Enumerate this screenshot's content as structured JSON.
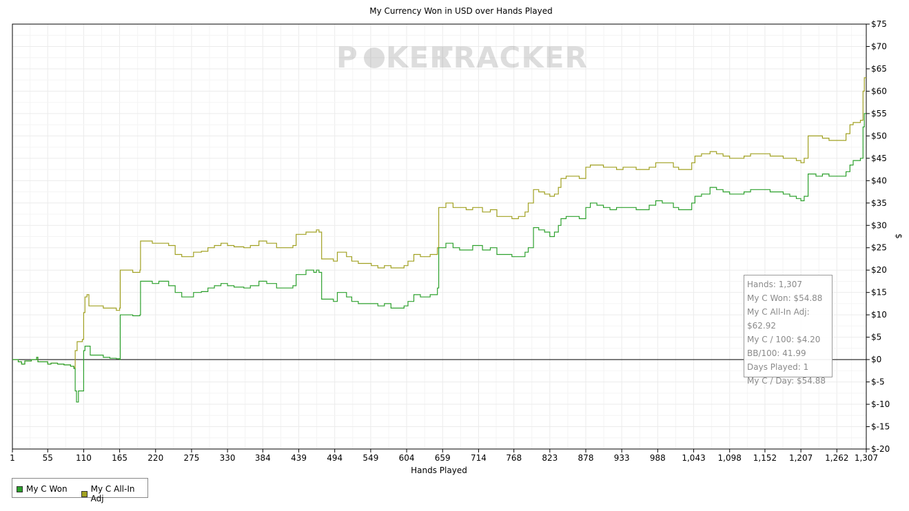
{
  "chart_data": {
    "type": "line",
    "title": "My Currency Won in USD over Hands Played",
    "xlabel": "Hands Played",
    "ylabel": "$",
    "xlim": [
      1,
      1307
    ],
    "ylim": [
      -20,
      75
    ],
    "x_ticks": [
      1,
      55,
      110,
      165,
      220,
      275,
      330,
      384,
      439,
      494,
      549,
      604,
      659,
      714,
      768,
      823,
      878,
      933,
      988,
      1043,
      1098,
      1152,
      1207,
      1262,
      1307
    ],
    "x_tick_labels": [
      "1",
      "55",
      "110",
      "165",
      "220",
      "275",
      "330",
      "384",
      "439",
      "494",
      "549",
      "604",
      "659",
      "714",
      "768",
      "823",
      "878",
      "933",
      "988",
      "1,043",
      "1,098",
      "1,152",
      "1,207",
      "1,262",
      "1,307"
    ],
    "y_ticks": [
      75,
      70,
      65,
      60,
      55,
      50,
      45,
      40,
      35,
      30,
      25,
      20,
      15,
      10,
      5,
      0,
      -5,
      -10,
      -15,
      -20
    ],
    "y_tick_labels": [
      "$75",
      "$70",
      "$65",
      "$60",
      "$55",
      "$50",
      "$45",
      "$40",
      "$35",
      "$30",
      "$25",
      "$20",
      "$15",
      "$10",
      "$5",
      "$0",
      "$-5",
      "$-10",
      "$-15",
      "$-20"
    ],
    "grid": true,
    "legend_position": "bottom-left",
    "series": [
      {
        "name": "My C Won",
        "color": "#2ca02c",
        "points": [
          [
            1,
            0
          ],
          [
            10,
            -0.5
          ],
          [
            15,
            -1
          ],
          [
            20,
            -0.3
          ],
          [
            30,
            0
          ],
          [
            38,
            0.5
          ],
          [
            40,
            -0.5
          ],
          [
            55,
            -1
          ],
          [
            60,
            -0.8
          ],
          [
            70,
            -1
          ],
          [
            80,
            -1.2
          ],
          [
            90,
            -1.5
          ],
          [
            95,
            -2
          ],
          [
            97,
            -7
          ],
          [
            99,
            -9.5
          ],
          [
            102,
            -7
          ],
          [
            108,
            -7
          ],
          [
            110,
            2
          ],
          [
            112,
            3
          ],
          [
            116,
            3
          ],
          [
            120,
            1
          ],
          [
            130,
            1
          ],
          [
            140,
            0.5
          ],
          [
            150,
            0.3
          ],
          [
            160,
            0.2
          ],
          [
            165,
            0
          ],
          [
            166,
            10
          ],
          [
            172,
            10
          ],
          [
            185,
            9.8
          ],
          [
            196,
            10
          ],
          [
            197,
            17.5
          ],
          [
            205,
            17.5
          ],
          [
            215,
            17
          ],
          [
            225,
            17.5
          ],
          [
            240,
            16.5
          ],
          [
            250,
            15
          ],
          [
            260,
            14
          ],
          [
            270,
            14
          ],
          [
            278,
            15
          ],
          [
            290,
            15.2
          ],
          [
            300,
            16
          ],
          [
            310,
            16.5
          ],
          [
            320,
            17
          ],
          [
            330,
            16.5
          ],
          [
            340,
            16.2
          ],
          [
            355,
            16
          ],
          [
            365,
            16.5
          ],
          [
            378,
            17.5
          ],
          [
            390,
            17
          ],
          [
            405,
            16
          ],
          [
            418,
            16
          ],
          [
            430,
            16.5
          ],
          [
            435,
            19
          ],
          [
            450,
            20
          ],
          [
            462,
            19.5
          ],
          [
            466,
            20
          ],
          [
            470,
            19.5
          ],
          [
            474,
            13.5
          ],
          [
            482,
            13.5
          ],
          [
            492,
            13
          ],
          [
            498,
            15
          ],
          [
            512,
            14
          ],
          [
            520,
            13
          ],
          [
            530,
            12.5
          ],
          [
            540,
            12.5
          ],
          [
            550,
            12.5
          ],
          [
            560,
            12
          ],
          [
            570,
            12.5
          ],
          [
            580,
            11.5
          ],
          [
            590,
            11.5
          ],
          [
            600,
            12
          ],
          [
            606,
            13
          ],
          [
            615,
            14.5
          ],
          [
            625,
            14
          ],
          [
            640,
            14.5
          ],
          [
            651,
            16
          ],
          [
            653,
            25
          ],
          [
            664,
            26
          ],
          [
            675,
            25
          ],
          [
            685,
            24.5
          ],
          [
            695,
            24.5
          ],
          [
            705,
            25.5
          ],
          [
            712,
            25.5
          ],
          [
            720,
            24.5
          ],
          [
            732,
            25
          ],
          [
            742,
            23.5
          ],
          [
            755,
            23.5
          ],
          [
            765,
            23
          ],
          [
            775,
            23
          ],
          [
            785,
            24
          ],
          [
            790,
            25
          ],
          [
            798,
            29.5
          ],
          [
            806,
            29
          ],
          [
            815,
            28.5
          ],
          [
            823,
            27.5
          ],
          [
            830,
            28.5
          ],
          [
            836,
            30
          ],
          [
            840,
            31.5
          ],
          [
            848,
            32
          ],
          [
            858,
            32
          ],
          [
            868,
            31.5
          ],
          [
            878,
            34
          ],
          [
            885,
            35
          ],
          [
            895,
            34.5
          ],
          [
            905,
            34
          ],
          [
            915,
            33.5
          ],
          [
            925,
            34
          ],
          [
            935,
            34
          ],
          [
            945,
            34
          ],
          [
            955,
            33.5
          ],
          [
            965,
            33.5
          ],
          [
            975,
            34.5
          ],
          [
            985,
            35.5
          ],
          [
            995,
            35
          ],
          [
            1005,
            35
          ],
          [
            1012,
            34
          ],
          [
            1020,
            33.5
          ],
          [
            1030,
            33.5
          ],
          [
            1040,
            35
          ],
          [
            1045,
            36.5
          ],
          [
            1055,
            37
          ],
          [
            1068,
            38.5
          ],
          [
            1078,
            38
          ],
          [
            1088,
            37.5
          ],
          [
            1098,
            37
          ],
          [
            1108,
            37
          ],
          [
            1120,
            37.5
          ],
          [
            1130,
            38
          ],
          [
            1140,
            38
          ],
          [
            1152,
            38
          ],
          [
            1160,
            37.5
          ],
          [
            1170,
            37.5
          ],
          [
            1180,
            37
          ],
          [
            1190,
            36.5
          ],
          [
            1200,
            36
          ],
          [
            1207,
            35.5
          ],
          [
            1212,
            36.5
          ],
          [
            1218,
            41.5
          ],
          [
            1230,
            41
          ],
          [
            1240,
            41.5
          ],
          [
            1250,
            41
          ],
          [
            1260,
            41
          ],
          [
            1270,
            41
          ],
          [
            1276,
            42
          ],
          [
            1282,
            43.5
          ],
          [
            1287,
            44.5
          ],
          [
            1294,
            44.5
          ],
          [
            1298,
            45
          ],
          [
            1302,
            52
          ],
          [
            1304,
            55
          ],
          [
            1307,
            55
          ]
        ]
      },
      {
        "name": "My C All-In Adj",
        "color": "#a0a020",
        "points": [
          [
            1,
            0
          ],
          [
            10,
            -0.5
          ],
          [
            15,
            -1
          ],
          [
            20,
            -0.3
          ],
          [
            30,
            0
          ],
          [
            38,
            0.5
          ],
          [
            40,
            -0.5
          ],
          [
            55,
            -1
          ],
          [
            60,
            -0.8
          ],
          [
            70,
            -1
          ],
          [
            80,
            -1.2
          ],
          [
            90,
            -1.5
          ],
          [
            95,
            -1.8
          ],
          [
            97,
            2
          ],
          [
            100,
            4
          ],
          [
            104,
            4
          ],
          [
            108,
            4.5
          ],
          [
            110,
            10.5
          ],
          [
            112,
            14
          ],
          [
            115,
            14.5
          ],
          [
            118,
            12
          ],
          [
            130,
            12
          ],
          [
            140,
            11.5
          ],
          [
            150,
            11.5
          ],
          [
            160,
            11
          ],
          [
            165,
            11.5
          ],
          [
            166,
            20
          ],
          [
            172,
            20
          ],
          [
            185,
            19.5
          ],
          [
            196,
            20
          ],
          [
            197,
            26.5
          ],
          [
            205,
            26.5
          ],
          [
            215,
            26
          ],
          [
            225,
            26
          ],
          [
            240,
            25.5
          ],
          [
            250,
            23.5
          ],
          [
            260,
            23
          ],
          [
            270,
            23
          ],
          [
            278,
            24
          ],
          [
            290,
            24.2
          ],
          [
            300,
            25
          ],
          [
            310,
            25.5
          ],
          [
            320,
            26
          ],
          [
            330,
            25.5
          ],
          [
            340,
            25.2
          ],
          [
            355,
            25
          ],
          [
            365,
            25.5
          ],
          [
            378,
            26.5
          ],
          [
            390,
            26
          ],
          [
            405,
            25
          ],
          [
            418,
            25
          ],
          [
            430,
            25.5
          ],
          [
            435,
            28
          ],
          [
            450,
            28.5
          ],
          [
            462,
            28.5
          ],
          [
            466,
            29
          ],
          [
            470,
            28.5
          ],
          [
            474,
            22.5
          ],
          [
            482,
            22.5
          ],
          [
            492,
            22
          ],
          [
            498,
            24
          ],
          [
            512,
            23
          ],
          [
            520,
            22
          ],
          [
            530,
            21.5
          ],
          [
            540,
            21.5
          ],
          [
            550,
            21
          ],
          [
            560,
            20.5
          ],
          [
            570,
            21
          ],
          [
            580,
            20.5
          ],
          [
            590,
            20.5
          ],
          [
            600,
            21
          ],
          [
            606,
            22
          ],
          [
            615,
            23.5
          ],
          [
            625,
            23
          ],
          [
            640,
            23.5
          ],
          [
            651,
            25
          ],
          [
            653,
            34
          ],
          [
            664,
            35
          ],
          [
            675,
            34
          ],
          [
            685,
            34
          ],
          [
            695,
            33.5
          ],
          [
            705,
            34
          ],
          [
            712,
            34
          ],
          [
            720,
            33
          ],
          [
            732,
            33.5
          ],
          [
            742,
            32
          ],
          [
            755,
            32
          ],
          [
            765,
            31.5
          ],
          [
            775,
            32
          ],
          [
            785,
            33
          ],
          [
            790,
            35
          ],
          [
            798,
            38
          ],
          [
            806,
            37.5
          ],
          [
            815,
            37
          ],
          [
            823,
            36.5
          ],
          [
            830,
            37
          ],
          [
            836,
            38.5
          ],
          [
            840,
            40.5
          ],
          [
            848,
            41
          ],
          [
            858,
            41
          ],
          [
            868,
            40.5
          ],
          [
            878,
            43
          ],
          [
            885,
            43.5
          ],
          [
            895,
            43.5
          ],
          [
            905,
            43
          ],
          [
            915,
            43
          ],
          [
            925,
            42.5
          ],
          [
            935,
            43
          ],
          [
            945,
            43
          ],
          [
            955,
            42.5
          ],
          [
            965,
            42.5
          ],
          [
            975,
            43
          ],
          [
            985,
            44
          ],
          [
            995,
            44
          ],
          [
            1005,
            44
          ],
          [
            1012,
            43
          ],
          [
            1020,
            42.5
          ],
          [
            1030,
            42.5
          ],
          [
            1040,
            44
          ],
          [
            1045,
            45.5
          ],
          [
            1055,
            46
          ],
          [
            1068,
            46.5
          ],
          [
            1078,
            46
          ],
          [
            1088,
            45.5
          ],
          [
            1098,
            45
          ],
          [
            1108,
            45
          ],
          [
            1120,
            45.5
          ],
          [
            1130,
            46
          ],
          [
            1140,
            46
          ],
          [
            1152,
            46
          ],
          [
            1160,
            45.5
          ],
          [
            1170,
            45.5
          ],
          [
            1180,
            45
          ],
          [
            1190,
            45
          ],
          [
            1200,
            44.5
          ],
          [
            1207,
            44
          ],
          [
            1212,
            45
          ],
          [
            1218,
            50
          ],
          [
            1230,
            50
          ],
          [
            1240,
            49.5
          ],
          [
            1250,
            49
          ],
          [
            1260,
            49
          ],
          [
            1270,
            49
          ],
          [
            1276,
            50.5
          ],
          [
            1282,
            52.5
          ],
          [
            1287,
            53
          ],
          [
            1294,
            53
          ],
          [
            1298,
            53.5
          ],
          [
            1302,
            60
          ],
          [
            1304,
            63
          ],
          [
            1307,
            63
          ]
        ]
      }
    ]
  },
  "watermark": {
    "text_left": "P",
    "text_middle": "KER",
    "text_right": "TRACKER"
  },
  "tooltip": {
    "lines": [
      "Hands: 1,307",
      "My C Won: $54.88",
      "My C All-In Adj: $62.92",
      "My C / 100: $4.20",
      "BB/100: 41.99",
      "Days Played: 1",
      "My C / Day: $54.88"
    ]
  },
  "legend": {
    "items": [
      {
        "label": "My C Won",
        "color": "#2ca02c"
      },
      {
        "label": "My C All-In Adj",
        "color": "#a0a020"
      }
    ]
  }
}
